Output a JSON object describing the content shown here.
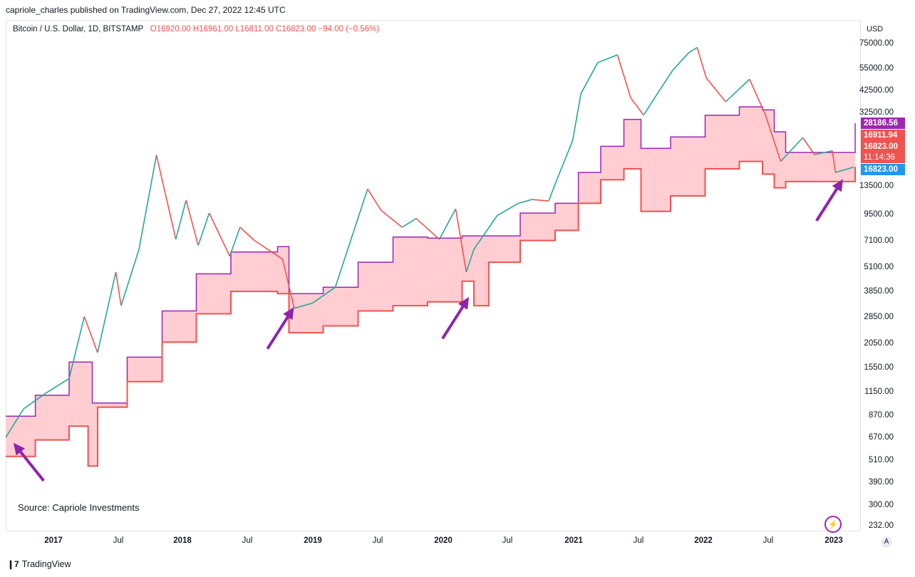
{
  "header": {
    "published": "capriole_charles published on TradingView.com, Dec 27, 2022 12:45 UTC"
  },
  "legend": {
    "symbol": "Bitcoin / U.S. Dollar, 1D, BITSTAMP",
    "ohlc": "O16920.00  H16961.00  L16811.00  C16823.00  −94.00 (−0.56%)"
  },
  "source": "Source: Capriole Investments",
  "footer": {
    "logo": "TradingView"
  },
  "axis": {
    "currency": "USD",
    "price_ticks": [
      "75000.00",
      "55000.00",
      "42500.00",
      "32500.00",
      "13500.00",
      "9500.00",
      "7100.00",
      "5100.00",
      "3850.00",
      "2850.00",
      "2050.00",
      "1550.00",
      "1150.00",
      "870.00",
      "670.00",
      "510.00",
      "390.00",
      "300.00",
      "232.00"
    ],
    "time_labels": [
      "2017",
      "Jul",
      "2018",
      "Jul",
      "2019",
      "Jul",
      "2020",
      "Jul",
      "2021",
      "Jul",
      "2022",
      "Jul",
      "2023"
    ],
    "auto_label": "A"
  },
  "price_tags": [
    "28186.56",
    "16911.94",
    "16823.00",
    "11:14:36",
    "16823.00"
  ],
  "colors": {
    "upper": "#9c27b0",
    "lower": "#ef5350",
    "band_fill": "#ffcdd2",
    "band_fill_dark": "#ff6b6b",
    "price_up": "#26a69a",
    "price_down": "#ef5350",
    "arrow": "#8e24aa"
  },
  "chart_data": {
    "type": "line",
    "title": "Bitcoin / U.S. Dollar, 1D, BITSTAMP",
    "y_scale": "log",
    "ylim": [
      232,
      95000
    ],
    "x_range": [
      "2016-11-15",
      "2023-01-15"
    ],
    "series": [
      {
        "name": "",
        "kind": "price",
        "x": [
          "2016-11-15",
          "2017-01-01",
          "2017-03-01",
          "2017-05-01",
          "2017-06-10",
          "2017-07-15",
          "2017-09-01",
          "2017-09-15",
          "2017-11-01",
          "2017-12-17",
          "2018-02-06",
          "2018-03-05",
          "2018-04-06",
          "2018-05-05",
          "2018-06-28",
          "2018-07-25",
          "2018-09-01",
          "2018-11-14",
          "2018-12-15",
          "2019-02-01",
          "2019-04-02",
          "2019-06-26",
          "2019-08-01",
          "2019-09-25",
          "2019-11-01",
          "2020-01-01",
          "2020-02-13",
          "2020-03-12",
          "2020-04-01",
          "2020-06-01",
          "2020-07-27",
          "2020-09-01",
          "2020-10-15",
          "2020-11-01",
          "2020-12-17",
          "2021-01-08",
          "2021-02-21",
          "2021-04-14",
          "2021-05-19",
          "2021-06-22",
          "2021-08-01",
          "2021-09-07",
          "2021-10-20",
          "2021-11-10",
          "2021-12-04",
          "2022-01-24",
          "2022-03-28",
          "2022-05-09",
          "2022-06-18",
          "2022-08-15",
          "2022-09-15",
          "2022-11-01",
          "2022-11-09",
          "2022-12-27"
        ],
        "y": [
          700,
          980,
          1180,
          1400,
          2900,
          1900,
          4900,
          3300,
          6400,
          19400,
          7200,
          11400,
          6700,
          9800,
          5900,
          8300,
          7100,
          5700,
          3200,
          3400,
          4100,
          13000,
          10100,
          8300,
          9200,
          7200,
          10300,
          4900,
          6400,
          9500,
          11000,
          11500,
          11300,
          13800,
          23000,
          40000,
          57500,
          63000,
          38000,
          31000,
          41000,
          52700,
          65000,
          68700,
          48000,
          36300,
          47300,
          31000,
          18000,
          23800,
          19500,
          20400,
          15800,
          16823
        ]
      },
      {
        "name": "",
        "kind": "upper",
        "x": [
          "2016-11-15",
          "2017-02-01",
          "2017-05-01",
          "2017-07-01",
          "2017-10-01",
          "2018-01-01",
          "2018-04-01",
          "2018-07-01",
          "2018-11-01",
          "2018-12-01",
          "2019-03-01",
          "2019-06-01",
          "2019-09-01",
          "2019-12-01",
          "2020-03-01",
          "2020-05-10",
          "2020-08-01",
          "2020-11-01",
          "2021-01-01",
          "2021-03-01",
          "2021-05-01",
          "2021-06-15",
          "2021-09-01",
          "2021-12-01",
          "2022-03-01",
          "2022-05-01",
          "2022-06-01",
          "2022-07-01",
          "2022-12-31"
        ],
        "y": [
          900,
          1150,
          1700,
          1050,
          1800,
          3100,
          4800,
          6200,
          6600,
          3800,
          4100,
          5500,
          7400,
          7300,
          7500,
          7500,
          9800,
          11000,
          15800,
          21500,
          29500,
          21000,
          24000,
          31000,
          34200,
          33000,
          25500,
          20000,
          28186
        ]
      },
      {
        "name": "",
        "kind": "lower",
        "x": [
          "2016-11-15",
          "2017-02-01",
          "2017-05-01",
          "2017-06-20",
          "2017-07-15",
          "2017-10-01",
          "2018-01-01",
          "2018-04-01",
          "2018-07-01",
          "2018-11-01",
          "2018-12-01",
          "2019-03-01",
          "2019-06-01",
          "2019-09-01",
          "2019-12-01",
          "2020-03-01",
          "2020-04-01",
          "2020-05-10",
          "2020-08-01",
          "2020-11-01",
          "2021-01-01",
          "2021-03-01",
          "2021-05-01",
          "2021-06-15",
          "2021-09-01",
          "2021-12-01",
          "2022-03-01",
          "2022-05-01",
          "2022-06-01",
          "2022-07-01",
          "2022-12-31"
        ],
        "y": [
          560,
          680,
          800,
          500,
          1000,
          1350,
          2150,
          3000,
          3900,
          3800,
          2400,
          2600,
          3100,
          3300,
          3450,
          4400,
          3300,
          5500,
          7100,
          8000,
          11000,
          14500,
          16500,
          10000,
          12000,
          16500,
          18000,
          15500,
          13200,
          14200,
          16911
        ]
      }
    ],
    "annotations": [
      {
        "type": "arrow",
        "label": "",
        "x": "2016-12-10",
        "y": 640
      },
      {
        "type": "arrow",
        "label": "",
        "x": "2018-12-10",
        "y": 3150
      },
      {
        "type": "arrow",
        "label": "",
        "x": "2020-03-15",
        "y": 3550
      },
      {
        "type": "arrow",
        "label": "",
        "x": "2022-11-25",
        "y": 14200
      }
    ]
  }
}
